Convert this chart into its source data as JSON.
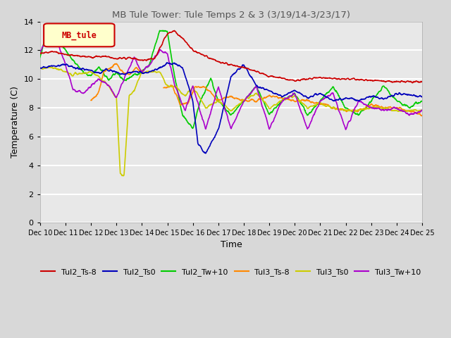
{
  "title": "MB Tule Tower: Tule Temps 2 & 3 (3/19/14-3/23/17)",
  "xlabel": "Time",
  "ylabel": "Temperature (C)",
  "ylim": [
    0,
    14
  ],
  "yticks": [
    0,
    2,
    4,
    6,
    8,
    10,
    12,
    14
  ],
  "xlim": [
    0,
    15
  ],
  "xtick_labels": [
    "Dec 10",
    "Dec 11",
    "Dec 12",
    "Dec 13",
    "Dec 14",
    "Dec 15",
    "Dec 16",
    "Dec 17",
    "Dec 18",
    "Dec 19",
    "Dec 20",
    "Dec 21",
    "Dec 22",
    "Dec 23",
    "Dec 24",
    "Dec 25"
  ],
  "legend_label": "MB_tule",
  "bg_color": "#d8d8d8",
  "plot_bg_color": "#e8e8e8",
  "series": {
    "Tul2_Ts-8": {
      "color": "#cc0000",
      "lw": 1.2
    },
    "Tul2_Ts0": {
      "color": "#0000bb",
      "lw": 1.2
    },
    "Tul2_Tw+10": {
      "color": "#00cc00",
      "lw": 1.2
    },
    "Tul3_Ts-8": {
      "color": "#ff8800",
      "lw": 1.2
    },
    "Tul3_Ts0": {
      "color": "#cccc00",
      "lw": 1.2
    },
    "Tul3_Tw+10": {
      "color": "#aa00cc",
      "lw": 1.2
    }
  }
}
